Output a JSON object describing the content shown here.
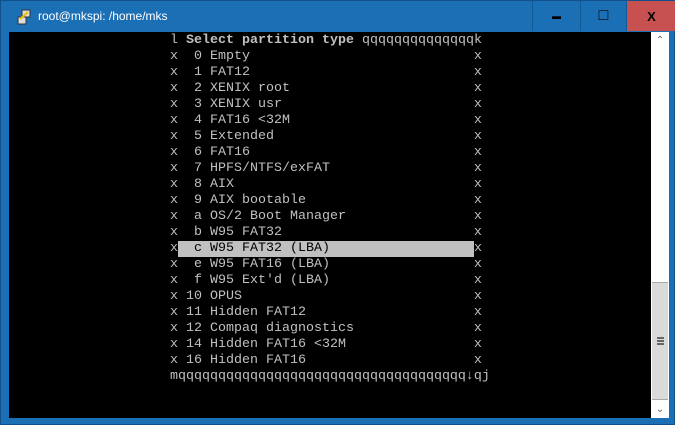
{
  "window": {
    "title": "root@mkspi: /home/mks",
    "minimize": "▬",
    "maximize": "□",
    "close": "X"
  },
  "terminal": {
    "header_prefix": "l ",
    "header_title": "Select partition type",
    "header_suffix": " qqqqqqqqqqqqqqk",
    "rows": [
      "x  0 Empty                            x",
      "x  1 FAT12                            x",
      "x  2 XENIX root                       x",
      "x  3 XENIX usr                        x",
      "x  4 FAT16 <32M                       x",
      "x  5 Extended                         x",
      "x  6 FAT16                            x",
      "x  7 HPFS/NTFS/exFAT                  x",
      "x  8 AIX                              x",
      "x  9 AIX bootable                     x",
      "x  a OS/2 Boot Manager                x",
      "x  b W95 FAT32                        x",
      "x  c W95 FAT32 (LBA)                  x",
      "x  e W95 FAT16 (LBA)                  x",
      "x  f W95 Ext'd (LBA)                  x",
      "x 10 OPUS                             x",
      "x 11 Hidden FAT12                     x",
      "x 12 Compaq diagnostics               x",
      "x 14 Hidden FAT16 <32M                x",
      "x 16 Hidden FAT16                     x"
    ],
    "selected_index": 12,
    "footer": "mqqqqqqqqqqqqqqqqqqqqqqqqqqqqqqqqqqqq↓qj"
  },
  "scrollbar": {
    "up": "⌃",
    "down": "⌄"
  }
}
